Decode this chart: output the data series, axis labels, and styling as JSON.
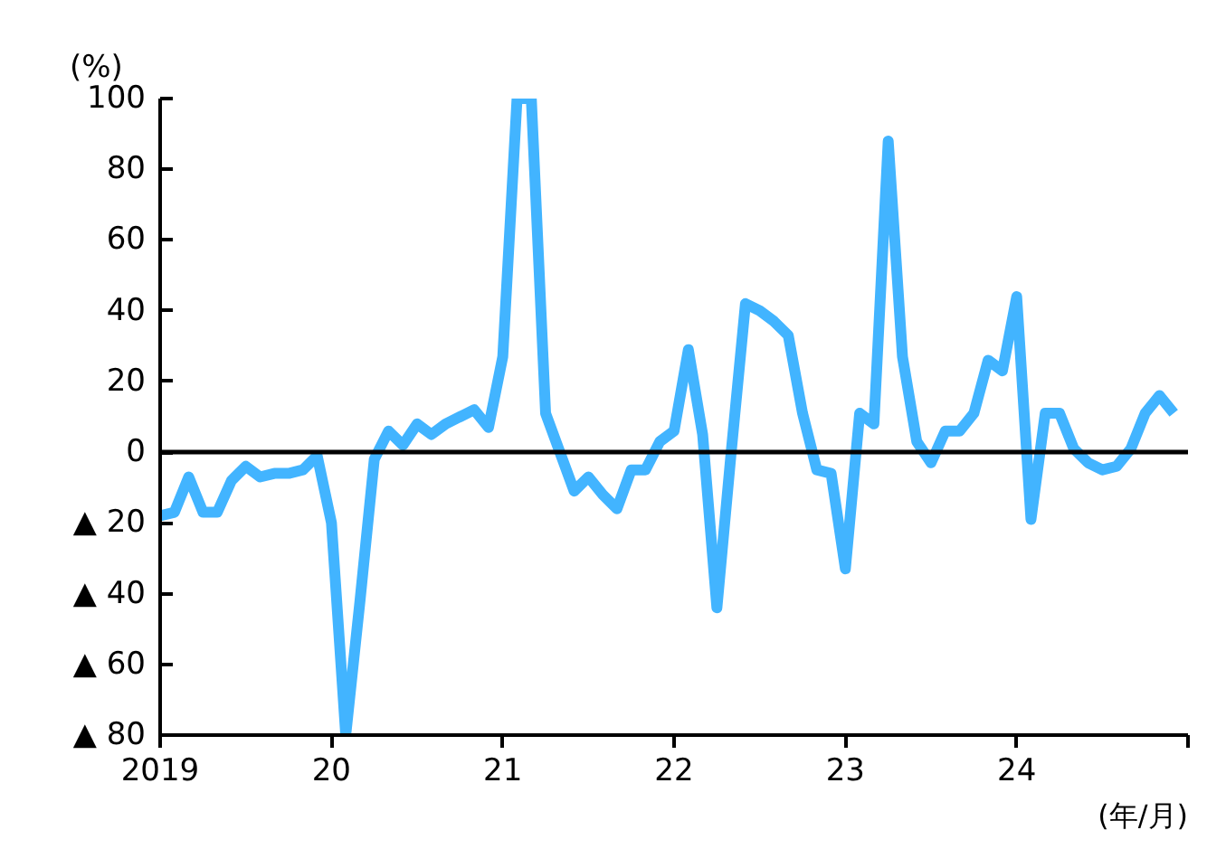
{
  "chart_data": {
    "type": "line",
    "ylabel": "(%)",
    "xlabel": "(年/月)",
    "x": [
      "2019-01",
      "2019-02",
      "2019-03",
      "2019-04",
      "2019-05",
      "2019-06",
      "2019-07",
      "2019-08",
      "2019-09",
      "2019-10",
      "2019-11",
      "2019-12",
      "2020-01",
      "2020-02",
      "2020-03",
      "2020-04",
      "2020-05",
      "2020-06",
      "2020-07",
      "2020-08",
      "2020-09",
      "2020-10",
      "2020-11",
      "2020-12",
      "2021-01",
      "2021-02",
      "2021-03",
      "2021-04",
      "2021-05",
      "2021-06",
      "2021-07",
      "2021-08",
      "2021-09",
      "2021-10",
      "2021-11",
      "2021-12",
      "2022-01",
      "2022-02",
      "2022-03",
      "2022-04",
      "2022-05",
      "2022-06",
      "2022-07",
      "2022-08",
      "2022-09",
      "2022-10",
      "2022-11",
      "2022-12",
      "2023-01",
      "2023-02",
      "2023-03",
      "2023-04",
      "2023-05",
      "2023-06",
      "2023-07",
      "2023-08",
      "2023-09",
      "2023-10",
      "2023-11",
      "2023-12",
      "2024-01",
      "2024-02",
      "2024-03",
      "2024-04",
      "2024-05",
      "2024-06",
      "2024-07",
      "2024-08",
      "2024-09",
      "2024-10",
      "2024-11",
      "2024-12"
    ],
    "series": [
      {
        "color": "#42b4ff",
        "values": [
          -18,
          -17,
          -7,
          -17,
          -17,
          -8,
          -4,
          -7,
          -6,
          -6,
          -5,
          -1,
          -20,
          -80,
          -42,
          -2,
          6,
          2,
          8,
          5,
          8,
          10,
          12,
          7,
          27,
          100,
          100,
          11,
          0,
          -11,
          -7,
          -12,
          -16,
          -5,
          -5,
          3,
          6,
          29,
          5,
          -44,
          0,
          42,
          40,
          37,
          33,
          11,
          -5,
          -6,
          -33,
          11,
          8,
          88,
          27,
          3,
          -3,
          6,
          6,
          11,
          26,
          23,
          44,
          -19,
          11,
          11,
          1,
          -3,
          -5,
          -4,
          1,
          11,
          16,
          11
        ]
      }
    ],
    "xlim": [
      "2019",
      "2025"
    ],
    "xticks": [
      {
        "value": "2019",
        "label": "2019"
      },
      {
        "value": "2020",
        "label": "20"
      },
      {
        "value": "2021",
        "label": "21"
      },
      {
        "value": "2022",
        "label": "22"
      },
      {
        "value": "2023",
        "label": "23"
      },
      {
        "value": "2024",
        "label": "24"
      },
      {
        "value": "2025",
        "label": null
      }
    ],
    "ylim": [
      -80,
      100
    ],
    "yticks": [
      {
        "value": -80,
        "label": "▲ 80"
      },
      {
        "value": -60,
        "label": "▲ 60"
      },
      {
        "value": -40,
        "label": "▲ 40"
      },
      {
        "value": -20,
        "label": "▲ 20"
      },
      0,
      20,
      40,
      60,
      80,
      100
    ],
    "ref_lines": [
      {
        "axis": "y",
        "value": 0,
        "label": null,
        "color": "#000000"
      }
    ],
    "grid": false,
    "marker": "none",
    "line_style": "solid"
  }
}
